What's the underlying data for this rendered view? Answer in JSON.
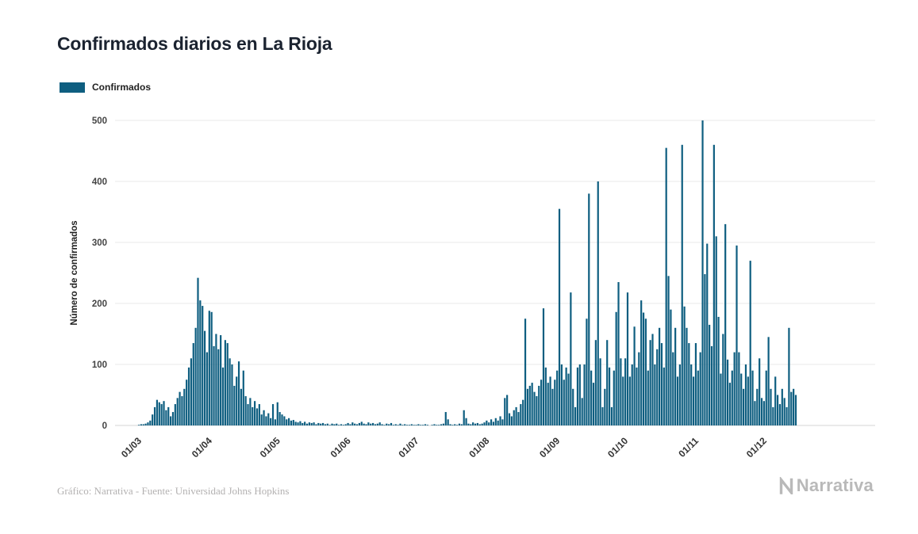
{
  "page": {
    "title": "Confirmados diarios en La Rioja"
  },
  "legend": {
    "label": "Confirmados"
  },
  "footer": {
    "credit": "Gráfico: Narrativa - Fuente: Universidad Johns Hopkins",
    "brand": "Narrativa"
  },
  "colors": {
    "bar": "#0e5e80",
    "grid": "#e9e9e9",
    "grid_zero": "#d5d5d5",
    "title": "#1b2330",
    "muted": "#b3b1b1",
    "brand": "#b9b9b9"
  },
  "chart_data": {
    "type": "bar",
    "title": "Confirmados diarios en La Rioja",
    "xlabel": "",
    "ylabel": "Número de confirmados",
    "ylim": [
      0,
      500
    ],
    "yticks": [
      0,
      100,
      200,
      300,
      400,
      500
    ],
    "grid": true,
    "legend_entries": [
      "Confirmados"
    ],
    "legend_position": "top-left",
    "x_unit": "day",
    "start_label": "01/03",
    "x_tick_labels": [
      "01/03",
      "01/04",
      "01/05",
      "01/06",
      "01/07",
      "01/08",
      "01/09",
      "01/10",
      "01/11",
      "01/12"
    ],
    "x_tick_day_indices": [
      0,
      31,
      61,
      92,
      122,
      153,
      184,
      214,
      245,
      275
    ],
    "series": [
      {
        "name": "Confirmados",
        "values": [
          1,
          2,
          2,
          3,
          5,
          8,
          18,
          30,
          42,
          38,
          35,
          40,
          25,
          30,
          15,
          22,
          35,
          45,
          55,
          48,
          60,
          75,
          95,
          110,
          135,
          160,
          242,
          205,
          196,
          155,
          120,
          188,
          186,
          130,
          150,
          125,
          148,
          95,
          140,
          135,
          110,
          100,
          65,
          80,
          105,
          60,
          90,
          48,
          35,
          45,
          30,
          40,
          28,
          35,
          18,
          25,
          15,
          20,
          12,
          35,
          10,
          38,
          22,
          18,
          15,
          10,
          12,
          8,
          9,
          6,
          5,
          7,
          4,
          6,
          3,
          5,
          4,
          5,
          2,
          4,
          3,
          4,
          2,
          3,
          1,
          3,
          2,
          3,
          1,
          2,
          1,
          2,
          4,
          2,
          5,
          3,
          2,
          4,
          6,
          3,
          2,
          5,
          3,
          4,
          2,
          3,
          5,
          2,
          1,
          3,
          2,
          4,
          1,
          2,
          1,
          3,
          1,
          2,
          1,
          1,
          2,
          1,
          1,
          2,
          1,
          1,
          2,
          1,
          0,
          1,
          2,
          1,
          1,
          2,
          3,
          22,
          10,
          2,
          1,
          2,
          1,
          3,
          2,
          25,
          12,
          3,
          2,
          5,
          3,
          4,
          2,
          3,
          5,
          8,
          5,
          10,
          6,
          12,
          8,
          15,
          10,
          45,
          50,
          20,
          15,
          25,
          30,
          22,
          35,
          42,
          175,
          60,
          65,
          70,
          55,
          48,
          65,
          75,
          192,
          95,
          70,
          80,
          60,
          75,
          90,
          355,
          100,
          75,
          95,
          85,
          218,
          60,
          30,
          95,
          100,
          45,
          100,
          175,
          380,
          90,
          70,
          140,
          400,
          110,
          30,
          60,
          140,
          95,
          30,
          90,
          186,
          235,
          110,
          80,
          110,
          218,
          80,
          100,
          162,
          95,
          120,
          205,
          185,
          175,
          90,
          140,
          150,
          100,
          125,
          160,
          135,
          95,
          455,
          245,
          190,
          120,
          160,
          80,
          100,
          460,
          195,
          160,
          135,
          100,
          80,
          135,
          90,
          120,
          500,
          248,
          298,
          165,
          130,
          460,
          310,
          178,
          85,
          150,
          330,
          108,
          70,
          90,
          120,
          295,
          120,
          85,
          60,
          100,
          80,
          270,
          90,
          40,
          60,
          110,
          45,
          40,
          90,
          145,
          60,
          30,
          80,
          50,
          35,
          60,
          45,
          30,
          160,
          55,
          60,
          50
        ]
      }
    ]
  }
}
